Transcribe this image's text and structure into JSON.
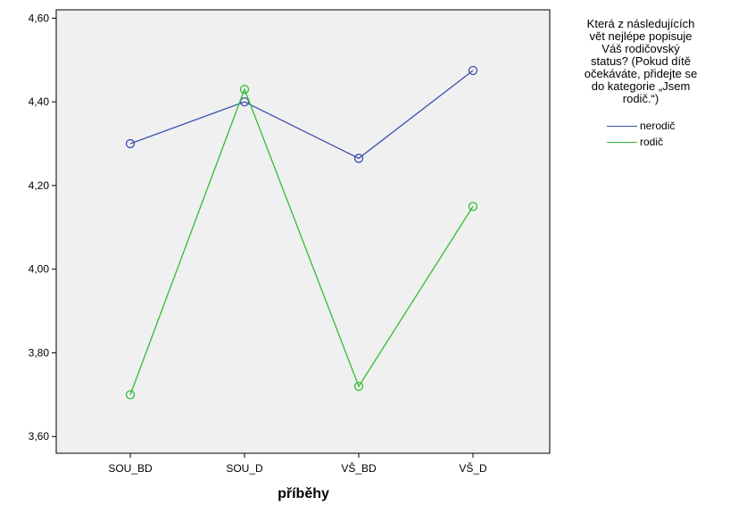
{
  "chart_data": {
    "type": "line",
    "title": "",
    "xlabel": "příběhy",
    "ylabel": "",
    "categories": [
      "SOU_BD",
      "SOU_D",
      "VŠ_BD",
      "VŠ_D"
    ],
    "ylim": [
      3.56,
      4.62
    ],
    "yticks": [
      "3,60",
      "3,80",
      "4,00",
      "4,20",
      "4,40",
      "4,60"
    ],
    "ytick_values": [
      3.6,
      3.8,
      4.0,
      4.2,
      4.4,
      4.6
    ],
    "grid": false,
    "legend_position": "right",
    "legend_title": "Která z následujících vět nejlépe popisuje Váš rodičovský status? (Pokud dítě očekáváte, přidejte se do kategorie „Jsem rodič.“)",
    "legend_title_lines": [
      "Která z následujících",
      "vět nejlépe popisuje",
      "Váš rodičovský",
      "status? (Pokud dítě",
      "očekáváte, přidejte se",
      "do kategorie „Jsem",
      "rodič.“)"
    ],
    "series": [
      {
        "name": "nerodič",
        "color": "#3b4fb0",
        "values": [
          4.3,
          4.4,
          4.265,
          4.475
        ]
      },
      {
        "name": "rodič",
        "color": "#33bb33",
        "values": [
          3.7,
          4.43,
          3.72,
          4.15
        ]
      }
    ],
    "plot_background": "#f0f0f0"
  }
}
